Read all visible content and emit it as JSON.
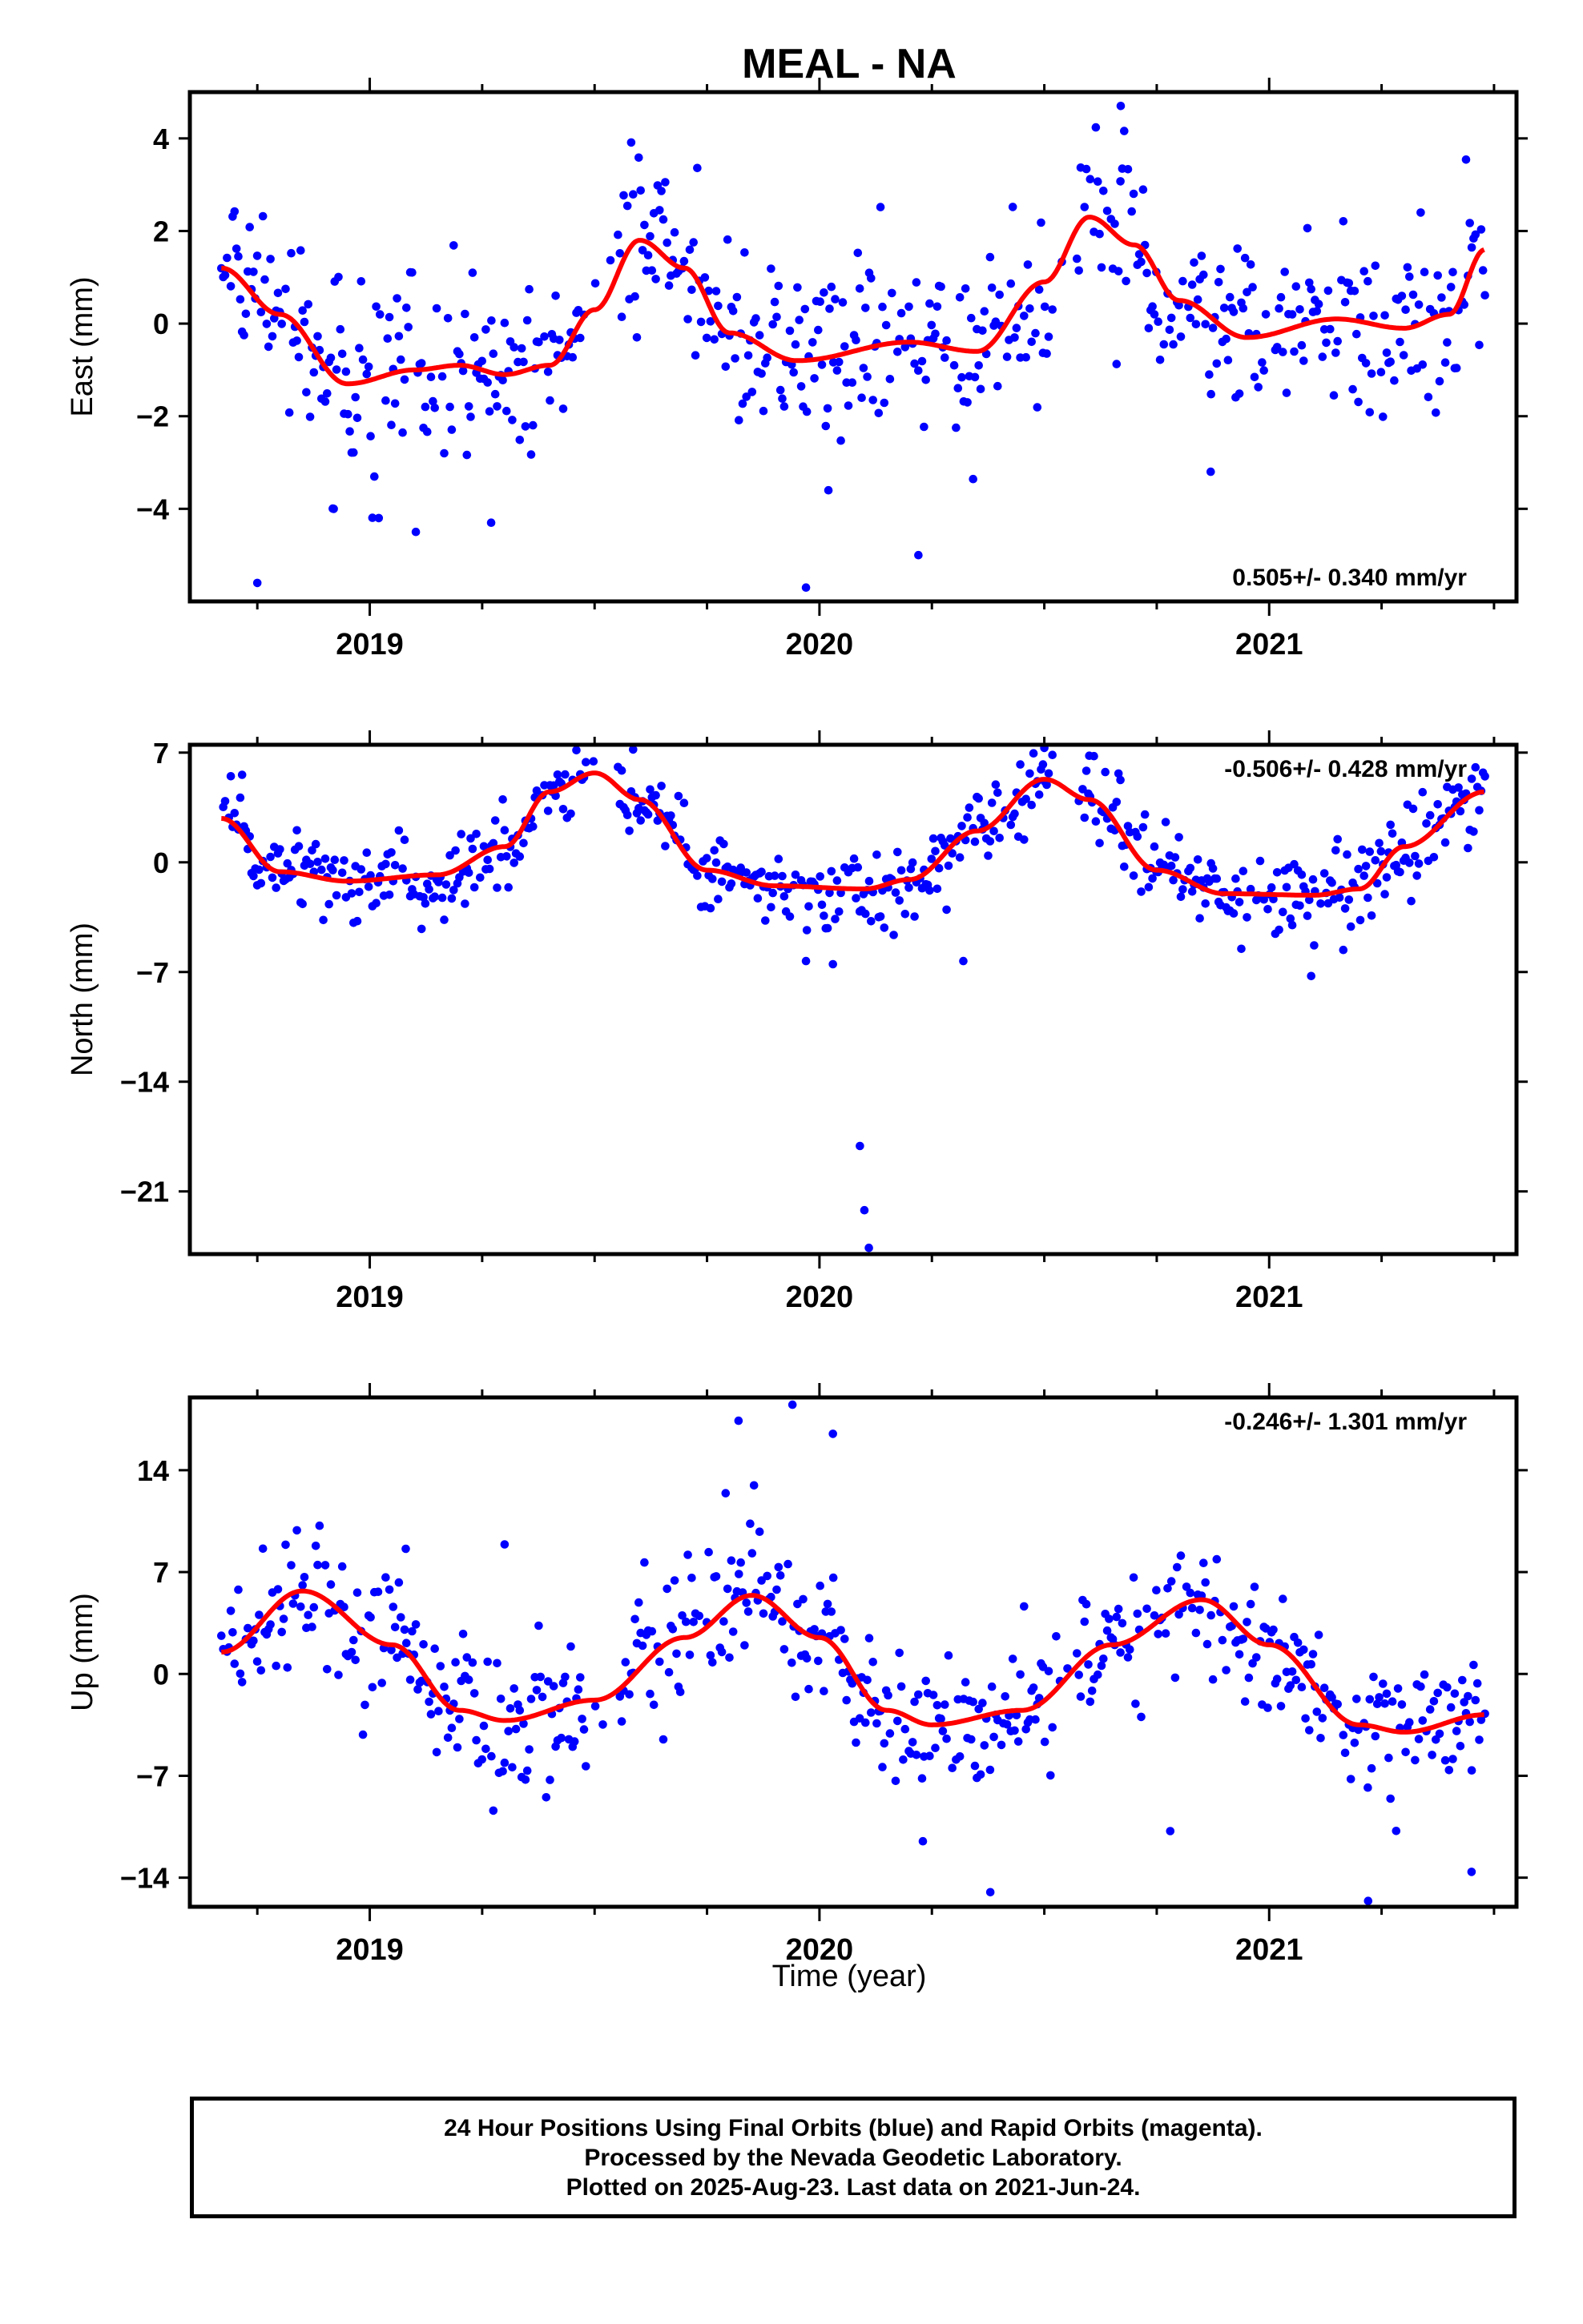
{
  "title": "MEAL - NA",
  "xlabel": "Time (year)",
  "footer": [
    "24 Hour Positions Using Final Orbits (blue) and Rapid Orbits (magenta).",
    "Processed by the Nevada Geodetic Laboratory.",
    "Plotted on 2025-Aug-23. Last data on 2021-Jun-24."
  ],
  "colors": {
    "data": "#0000ff",
    "fit": "#ff0000",
    "frame": "#000000"
  },
  "chart_data": [
    {
      "type": "scatter",
      "ylabel": "East (mm)",
      "xlim": [
        2018.6,
        2021.55
      ],
      "ylim": [
        -6.0,
        5.0
      ],
      "xticks": [
        2019,
        2020,
        2021
      ],
      "yticks": [
        4,
        2,
        0,
        -2,
        -4
      ],
      "ytick_labels": [
        "4",
        "2",
        "0",
        "−2",
        "−4"
      ],
      "rate": "0.505+/- 0.340 mm/yr",
      "rate_position": "bottom-right",
      "fit": {
        "mean": 0.3,
        "trend": 0.505,
        "t0": 2020.0,
        "harmonics": [
          {
            "period": 1.0,
            "amp": 1.2,
            "phase": 2019.62
          },
          {
            "period": 0.5,
            "amp": 0.7,
            "phase": 2019.6
          }
        ]
      },
      "fit_curve": [
        [
          2018.67,
          1.2
        ],
        [
          2018.8,
          0.2
        ],
        [
          2018.95,
          -1.3
        ],
        [
          2019.1,
          -1.0
        ],
        [
          2019.2,
          -0.9
        ],
        [
          2019.3,
          -1.1
        ],
        [
          2019.4,
          -0.9
        ],
        [
          2019.5,
          0.3
        ],
        [
          2019.6,
          1.8
        ],
        [
          2019.7,
          1.2
        ],
        [
          2019.8,
          -0.2
        ],
        [
          2019.95,
          -0.8
        ],
        [
          2020.2,
          -0.4
        ],
        [
          2020.35,
          -0.6
        ],
        [
          2020.5,
          0.9
        ],
        [
          2020.6,
          2.3
        ],
        [
          2020.7,
          1.7
        ],
        [
          2020.8,
          0.5
        ],
        [
          2020.95,
          -0.3
        ],
        [
          2021.15,
          0.1
        ],
        [
          2021.3,
          -0.1
        ],
        [
          2021.4,
          0.2
        ],
        [
          2021.48,
          1.6
        ]
      ],
      "noise": 1.0,
      "outliers": [
        [
          2018.75,
          -5.6
        ],
        [
          2019.97,
          -5.7
        ],
        [
          2020.22,
          -5.0
        ],
        [
          2019.27,
          -4.3
        ],
        [
          2019.02,
          -4.2
        ],
        [
          2018.92,
          -4.0
        ],
        [
          2020.87,
          -3.2
        ],
        [
          2020.02,
          -3.6
        ],
        [
          2020.67,
          4.7
        ]
      ]
    },
    {
      "type": "scatter",
      "ylabel": "North (mm)",
      "xlim": [
        2018.6,
        2021.55
      ],
      "ylim": [
        -25.0,
        7.5
      ],
      "xticks": [
        2019,
        2020,
        2021
      ],
      "yticks": [
        7,
        0,
        -7,
        -14,
        -21
      ],
      "ytick_labels": [
        "7",
        "0",
        "−7",
        "−14",
        "−21"
      ],
      "rate": "-0.506+/- 0.428 mm/yr",
      "rate_position": "top-right",
      "fit": {
        "mean": 0.5,
        "trend": -0.506,
        "t0": 2020.0,
        "harmonics": [
          {
            "period": 1.0,
            "amp": 3.3,
            "phase": 2019.5
          },
          {
            "period": 0.5,
            "amp": 1.3,
            "phase": 2019.55
          }
        ]
      },
      "fit_curve": [
        [
          2018.67,
          2.8
        ],
        [
          2018.8,
          -0.6
        ],
        [
          2018.95,
          -1.2
        ],
        [
          2019.15,
          -0.8
        ],
        [
          2019.3,
          1.0
        ],
        [
          2019.4,
          4.5
        ],
        [
          2019.5,
          5.7
        ],
        [
          2019.6,
          4.0
        ],
        [
          2019.75,
          -0.5
        ],
        [
          2019.9,
          -1.5
        ],
        [
          2020.1,
          -1.7
        ],
        [
          2020.2,
          -1.1
        ],
        [
          2020.35,
          2.0
        ],
        [
          2020.5,
          5.3
        ],
        [
          2020.6,
          4.0
        ],
        [
          2020.75,
          -0.5
        ],
        [
          2020.9,
          -2.0
        ],
        [
          2021.1,
          -2.1
        ],
        [
          2021.2,
          -1.7
        ],
        [
          2021.3,
          1.0
        ],
        [
          2021.48,
          4.5
        ]
      ],
      "noise": 1.3,
      "outliers": [
        [
          2020.09,
          -18.1
        ],
        [
          2020.1,
          -22.2
        ],
        [
          2020.11,
          -24.6
        ],
        [
          2020.32,
          -6.3
        ],
        [
          2019.97,
          -6.3
        ],
        [
          2020.03,
          -6.5
        ],
        [
          2021.1,
          -5.3
        ],
        [
          2020.6,
          6.8
        ],
        [
          2020.5,
          7.3
        ]
      ]
    },
    {
      "type": "scatter",
      "ylabel": "Up (mm)",
      "xlim": [
        2018.6,
        2021.55
      ],
      "ylim": [
        -16.0,
        19.0
      ],
      "xticks": [
        2019,
        2020,
        2021
      ],
      "yticks": [
        14,
        7,
        0,
        -7,
        -14
      ],
      "ytick_labels": [
        "14",
        "7",
        "0",
        "−7",
        "−14"
      ],
      "rate": "-0.246+/- 1.301 mm/yr",
      "rate_position": "top-right",
      "fit": {
        "mean": 1.0,
        "trend": -0.246,
        "t0": 2020.0,
        "harmonics": [
          {
            "period": 1.0,
            "amp": 4.5,
            "phase": 2019.85
          },
          {
            "period": 0.5,
            "amp": 0.8,
            "phase": 2019.9
          }
        ]
      },
      "fit_curve": [
        [
          2018.67,
          1.5
        ],
        [
          2018.85,
          5.7
        ],
        [
          2019.05,
          2.0
        ],
        [
          2019.2,
          -2.5
        ],
        [
          2019.3,
          -3.2
        ],
        [
          2019.5,
          -1.8
        ],
        [
          2019.7,
          2.5
        ],
        [
          2019.85,
          5.4
        ],
        [
          2020.0,
          2.5
        ],
        [
          2020.15,
          -2.5
        ],
        [
          2020.25,
          -3.5
        ],
        [
          2020.45,
          -2.5
        ],
        [
          2020.65,
          2.0
        ],
        [
          2020.85,
          5.1
        ],
        [
          2021.0,
          2.0
        ],
        [
          2021.2,
          -3.5
        ],
        [
          2021.3,
          -4.0
        ],
        [
          2021.48,
          -2.8
        ]
      ],
      "noise": 2.6,
      "outliers": [
        [
          2019.94,
          18.5
        ],
        [
          2019.82,
          17.4
        ],
        [
          2020.03,
          16.5
        ],
        [
          2020.38,
          -15.0
        ],
        [
          2021.22,
          -15.6
        ],
        [
          2020.78,
          -10.8
        ],
        [
          2021.45,
          -13.6
        ],
        [
          2020.23,
          -11.5
        ],
        [
          2019.08,
          8.6
        ],
        [
          2019.3,
          8.9
        ]
      ]
    }
  ]
}
